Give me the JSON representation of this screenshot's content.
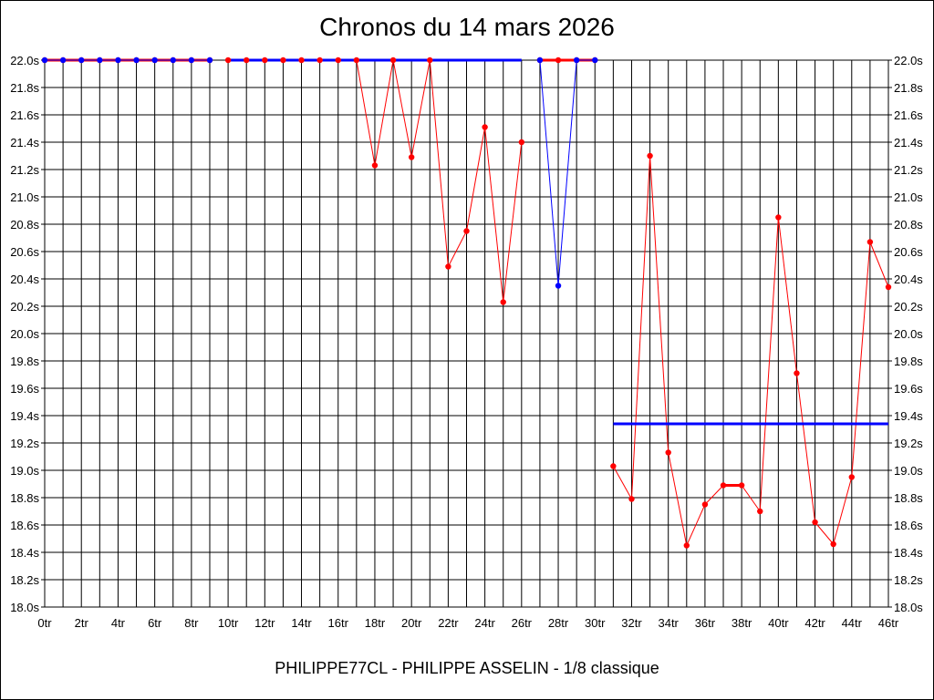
{
  "chart_data": {
    "type": "line",
    "title": "Chronos du 14 mars 2026",
    "footer": "PHILIPPE77CL - PHILIPPE ASSELIN - 1/8 classique",
    "ylim": [
      18.0,
      22.0
    ],
    "y_ticks": [
      "18.0s",
      "18.2s",
      "18.4s",
      "18.6s",
      "18.8s",
      "19.0s",
      "19.2s",
      "19.4s",
      "19.6s",
      "19.8s",
      "20.0s",
      "20.2s",
      "20.4s",
      "20.6s",
      "20.8s",
      "21.0s",
      "21.2s",
      "21.4s",
      "21.6s",
      "21.8s",
      "22.0s"
    ],
    "x_ticks": [
      "0tr",
      "2tr",
      "4tr",
      "6tr",
      "8tr",
      "10tr",
      "12tr",
      "14tr",
      "16tr",
      "18tr",
      "20tr",
      "22tr",
      "24tr",
      "26tr",
      "28tr",
      "30tr",
      "32tr",
      "34tr",
      "36tr",
      "38tr",
      "40tr",
      "42tr",
      "44tr",
      "46tr"
    ],
    "xlim": [
      0,
      46
    ],
    "grid": true,
    "colors": {
      "red": "#ff0000",
      "blue": "#0000ff"
    },
    "series": [
      {
        "color": "red",
        "segments": [
          [
            [
              0,
              22.0
            ],
            [
              1,
              22.0
            ],
            [
              2,
              22.0
            ],
            [
              3,
              22.0
            ],
            [
              4,
              22.0
            ],
            [
              5,
              22.0
            ],
            [
              6,
              22.0
            ],
            [
              7,
              22.0
            ],
            [
              8,
              22.0
            ],
            [
              9,
              22.0
            ]
          ],
          [
            [
              10,
              22.0
            ],
            [
              11,
              22.0
            ],
            [
              12,
              22.0
            ],
            [
              13,
              22.0
            ],
            [
              14,
              22.0
            ],
            [
              15,
              22.0
            ],
            [
              16,
              22.0
            ],
            [
              17,
              22.0
            ],
            [
              18,
              21.23
            ],
            [
              19,
              22.0
            ],
            [
              20,
              21.29
            ],
            [
              21,
              22.0
            ],
            [
              22,
              20.49
            ],
            [
              23,
              20.75
            ],
            [
              24,
              21.51
            ],
            [
              25,
              20.23
            ],
            [
              26,
              21.4
            ]
          ],
          [
            [
              27,
              22.0
            ],
            [
              28,
              22.0
            ],
            [
              29,
              22.0
            ],
            [
              30,
              22.0
            ]
          ],
          [
            [
              31,
              19.03
            ],
            [
              32,
              18.79
            ],
            [
              33,
              21.3
            ],
            [
              34,
              19.13
            ],
            [
              35,
              18.45
            ],
            [
              36,
              18.75
            ],
            [
              37,
              18.89
            ],
            [
              38,
              18.89
            ],
            [
              39,
              18.7
            ],
            [
              40,
              20.85
            ],
            [
              41,
              19.71
            ],
            [
              42,
              18.62
            ],
            [
              43,
              18.46
            ],
            [
              44,
              18.95
            ],
            [
              45,
              20.67
            ],
            [
              46,
              20.34
            ]
          ]
        ]
      },
      {
        "color": "blue",
        "segments": [
          [
            [
              0,
              22.0
            ],
            [
              1,
              22.0
            ],
            [
              2,
              22.0
            ],
            [
              3,
              22.0
            ],
            [
              4,
              22.0
            ],
            [
              5,
              22.0
            ],
            [
              6,
              22.0
            ],
            [
              7,
              22.0
            ],
            [
              8,
              22.0
            ],
            [
              9,
              22.0
            ]
          ],
          [
            [
              10,
              22.0
            ],
            [
              26,
              22.0
            ]
          ],
          [
            [
              27,
              22.0
            ],
            [
              28,
              20.35
            ],
            [
              29,
              22.0
            ],
            [
              30,
              22.0
            ]
          ],
          [
            [
              31,
              19.34
            ],
            [
              46,
              19.34
            ]
          ]
        ],
        "markers": [
          [
            0,
            22.0
          ],
          [
            1,
            22.0
          ],
          [
            2,
            22.0
          ],
          [
            3,
            22.0
          ],
          [
            4,
            22.0
          ],
          [
            5,
            22.0
          ],
          [
            6,
            22.0
          ],
          [
            7,
            22.0
          ],
          [
            8,
            22.0
          ],
          [
            9,
            22.0
          ],
          [
            27,
            22.0
          ],
          [
            28,
            20.35
          ],
          [
            29,
            22.0
          ],
          [
            30,
            22.0
          ]
        ]
      }
    ]
  }
}
